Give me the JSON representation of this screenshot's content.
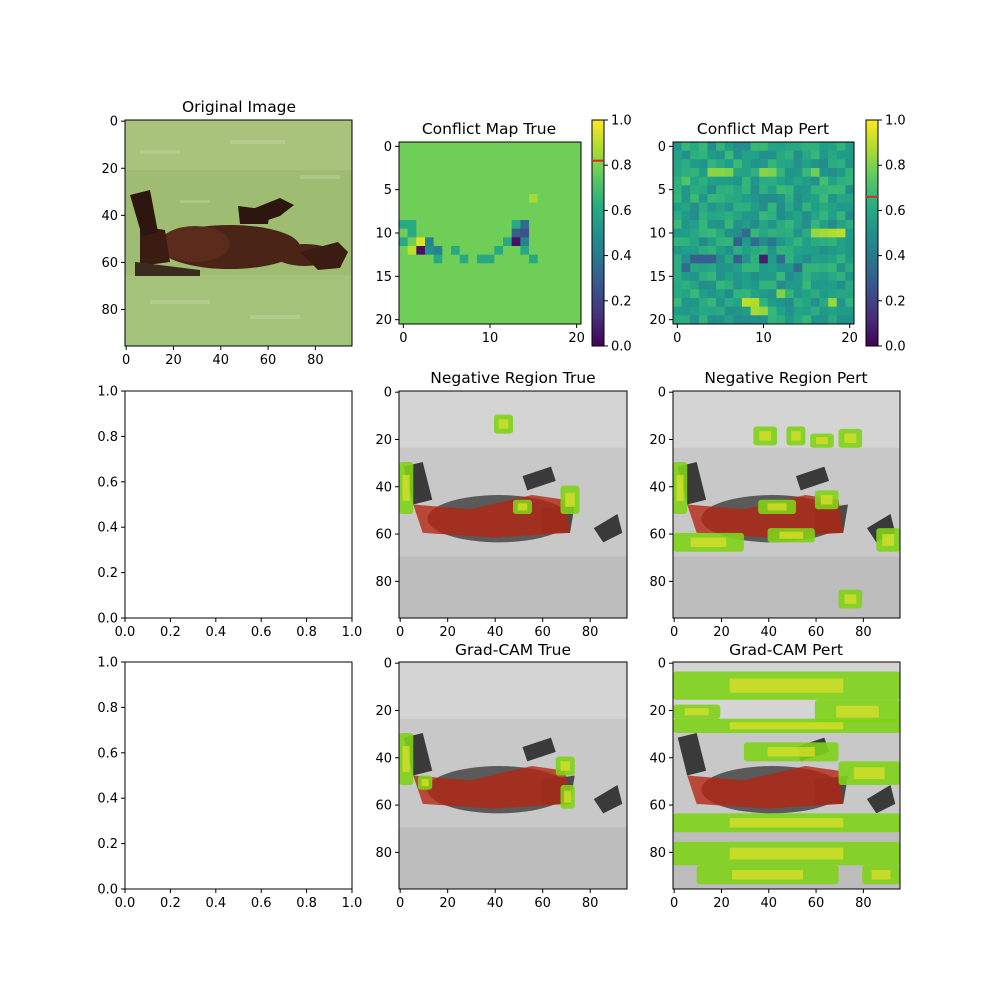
{
  "chart_data": [
    {
      "type": "image",
      "title": "Original Image",
      "content": "photo of a brown horse rolling on its back in green grass",
      "x_ticks": [
        "0",
        "20",
        "40",
        "60",
        "80"
      ],
      "y_ticks": [
        "0",
        "20",
        "40",
        "60",
        "80"
      ],
      "xlim": [
        -0.5,
        95.5
      ],
      "ylim": [
        95.5,
        -0.5
      ]
    },
    {
      "type": "heatmap",
      "title": "Conflict Map True",
      "grid_size": [
        21,
        21
      ],
      "colormap": "viridis",
      "background_value": 0.78,
      "notable_cells": [
        {
          "x": 15,
          "y": 6,
          "v": 0.86
        },
        {
          "x": 0,
          "y": 9,
          "v": 0.6
        },
        {
          "x": 1,
          "y": 9,
          "v": 0.6
        },
        {
          "x": 13,
          "y": 9,
          "v": 0.6
        },
        {
          "x": 14,
          "y": 9,
          "v": 0.35
        },
        {
          "x": 1,
          "y": 10,
          "v": 0.6
        },
        {
          "x": 13,
          "y": 10,
          "v": 0.3
        },
        {
          "x": 14,
          "y": 10,
          "v": 0.25
        },
        {
          "x": 0,
          "y": 11,
          "v": 0.6
        },
        {
          "x": 2,
          "y": 11,
          "v": 0.95
        },
        {
          "x": 3,
          "y": 11,
          "v": 0.45
        },
        {
          "x": 12,
          "y": 11,
          "v": 0.6
        },
        {
          "x": 13,
          "y": 11,
          "v": 0.05
        },
        {
          "x": 14,
          "y": 11,
          "v": 0.45
        },
        {
          "x": 1,
          "y": 12,
          "v": 0.9
        },
        {
          "x": 2,
          "y": 12,
          "v": 0.05
        },
        {
          "x": 3,
          "y": 12,
          "v": 0.5
        },
        {
          "x": 4,
          "y": 12,
          "v": 0.45
        },
        {
          "x": 6,
          "y": 12,
          "v": 0.6
        },
        {
          "x": 11,
          "y": 12,
          "v": 0.6
        },
        {
          "x": 14,
          "y": 12,
          "v": 0.6
        },
        {
          "x": 4,
          "y": 13,
          "v": 0.6
        },
        {
          "x": 7,
          "y": 13,
          "v": 0.6
        },
        {
          "x": 9,
          "y": 13,
          "v": 0.6
        },
        {
          "x": 10,
          "y": 13,
          "v": 0.6
        },
        {
          "x": 15,
          "y": 13,
          "v": 0.6
        }
      ],
      "x_ticks": [
        0,
        10,
        20
      ],
      "y_ticks": [
        0,
        5,
        10,
        15,
        20
      ],
      "xlim": [
        -0.5,
        20.5
      ],
      "ylim": [
        20.5,
        -0.5
      ],
      "colorbar": {
        "range": [
          0.0,
          1.0
        ],
        "ticks": [
          "0.0",
          "0.2",
          "0.4",
          "0.6",
          "0.8",
          "1.0"
        ],
        "marker_value": 0.82,
        "marker_color": "#d62728"
      }
    },
    {
      "type": "heatmap",
      "title": "Conflict Map Pert",
      "grid_size": [
        21,
        21
      ],
      "colormap": "viridis",
      "background_value": 0.58,
      "noise_amplitude": 0.1,
      "seed": 7,
      "notable_cells": [
        {
          "x": 4,
          "y": 3,
          "v": 0.82
        },
        {
          "x": 5,
          "y": 3,
          "v": 0.82
        },
        {
          "x": 6,
          "y": 3,
          "v": 0.8
        },
        {
          "x": 10,
          "y": 3,
          "v": 0.82
        },
        {
          "x": 11,
          "y": 3,
          "v": 0.8
        },
        {
          "x": 16,
          "y": 3,
          "v": 0.78
        },
        {
          "x": 1,
          "y": 4,
          "v": 0.72
        },
        {
          "x": 17,
          "y": 4,
          "v": 0.7
        },
        {
          "x": 19,
          "y": 10,
          "v": 0.9
        },
        {
          "x": 18,
          "y": 10,
          "v": 0.88
        },
        {
          "x": 17,
          "y": 10,
          "v": 0.86
        },
        {
          "x": 16,
          "y": 10,
          "v": 0.84
        },
        {
          "x": 7,
          "y": 11,
          "v": 0.3
        },
        {
          "x": 8,
          "y": 10,
          "v": 0.35
        },
        {
          "x": 9,
          "y": 11,
          "v": 0.35
        },
        {
          "x": 11,
          "y": 11,
          "v": 0.4
        },
        {
          "x": 2,
          "y": 13,
          "v": 0.3
        },
        {
          "x": 3,
          "y": 13,
          "v": 0.3
        },
        {
          "x": 4,
          "y": 13,
          "v": 0.3
        },
        {
          "x": 7,
          "y": 13,
          "v": 0.3
        },
        {
          "x": 10,
          "y": 13,
          "v": 0.08
        },
        {
          "x": 12,
          "y": 13,
          "v": 0.35
        },
        {
          "x": 1,
          "y": 14,
          "v": 0.35
        },
        {
          "x": 14,
          "y": 14,
          "v": 0.35
        },
        {
          "x": 8,
          "y": 18,
          "v": 0.9
        },
        {
          "x": 9,
          "y": 18,
          "v": 0.88
        },
        {
          "x": 9,
          "y": 19,
          "v": 0.86
        },
        {
          "x": 10,
          "y": 19,
          "v": 0.84
        },
        {
          "x": 18,
          "y": 18,
          "v": 0.84
        },
        {
          "x": 12,
          "y": 17,
          "v": 0.8
        }
      ],
      "x_ticks": [
        0,
        10,
        20
      ],
      "y_ticks": [
        0,
        5,
        10,
        15,
        20
      ],
      "xlim": [
        -0.5,
        20.5
      ],
      "ylim": [
        20.5,
        -0.5
      ],
      "colorbar": {
        "range": [
          0.0,
          1.0
        ],
        "ticks": [
          "0.0",
          "0.2",
          "0.4",
          "0.6",
          "0.8",
          "1.0"
        ],
        "marker_value": 0.66,
        "marker_color": "#d62728"
      }
    },
    {
      "type": "empty",
      "x_ticks": [
        "0.0",
        "0.2",
        "0.4",
        "0.6",
        "0.8",
        "1.0"
      ],
      "y_ticks": [
        "0.0",
        "0.2",
        "0.4",
        "0.6",
        "0.8",
        "1.0"
      ],
      "xlim": [
        0,
        1
      ],
      "ylim": [
        0,
        1
      ]
    },
    {
      "type": "image",
      "title": "Negative Region True",
      "content": "grayscale horse image with red overlay on body and green highlight patches",
      "x_ticks": [
        "0",
        "20",
        "40",
        "60",
        "80"
      ],
      "y_ticks": [
        "0",
        "20",
        "40",
        "60",
        "80"
      ],
      "xlim": [
        -0.5,
        95.5
      ],
      "ylim": [
        95.5,
        -0.5
      ]
    },
    {
      "type": "image",
      "title": "Negative Region Pert",
      "content": "grayscale horse image with red overlay on body and green highlight patches in grass",
      "x_ticks": [
        "0",
        "20",
        "40",
        "60",
        "80"
      ],
      "y_ticks": [
        "0",
        "20",
        "40",
        "60",
        "80"
      ],
      "xlim": [
        -0.5,
        95.5
      ],
      "ylim": [
        95.5,
        -0.5
      ]
    },
    {
      "type": "empty",
      "x_ticks": [
        "0.0",
        "0.2",
        "0.4",
        "0.6",
        "0.8",
        "1.0"
      ],
      "y_ticks": [
        "0.0",
        "0.2",
        "0.4",
        "0.6",
        "0.8",
        "1.0"
      ],
      "xlim": [
        0,
        1
      ],
      "ylim": [
        0,
        1
      ]
    },
    {
      "type": "image",
      "title": "Grad-CAM True",
      "content": "grayscale horse image with red overlay on body and small green patches",
      "x_ticks": [
        "0",
        "20",
        "40",
        "60",
        "80"
      ],
      "y_ticks": [
        "0",
        "20",
        "40",
        "60",
        "80"
      ],
      "xlim": [
        -0.5,
        95.5
      ],
      "ylim": [
        95.5,
        -0.5
      ]
    },
    {
      "type": "image",
      "title": "Grad-CAM Pert",
      "content": "grayscale horse image with red overlay on body and widespread green/yellow patches",
      "x_ticks": [
        "0",
        "20",
        "40",
        "60",
        "80"
      ],
      "y_ticks": [
        "0",
        "20",
        "40",
        "60",
        "80"
      ],
      "xlim": [
        -0.5,
        95.5
      ],
      "ylim": [
        95.5,
        -0.5
      ]
    }
  ]
}
